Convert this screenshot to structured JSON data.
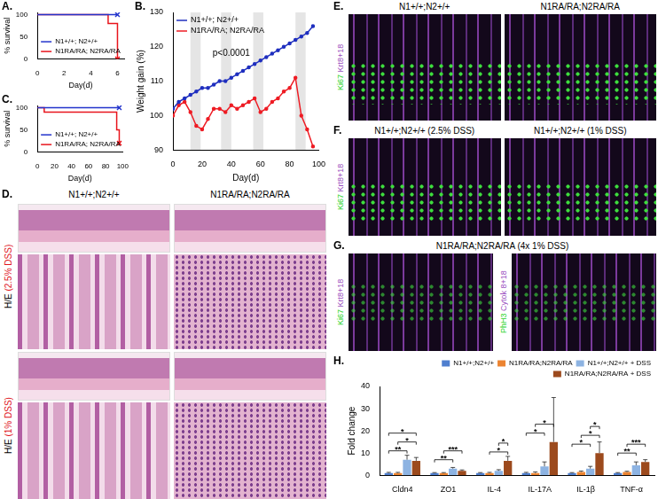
{
  "chart_data": [
    {
      "panel": "A.",
      "type": "line",
      "x_label": "Day(d)",
      "y_label": "% survival",
      "xlim": [
        0,
        6.5
      ],
      "xticks": [
        0,
        2,
        4,
        6
      ],
      "ylim": [
        0,
        105
      ],
      "yticks": [
        0,
        50,
        100
      ],
      "grid": false,
      "legend": "lower left",
      "series": [
        {
          "name": "N1+/+; N2+/+",
          "color": "#2233cc",
          "x": [
            0,
            6
          ],
          "values": [
            100,
            100
          ],
          "line_style": "step",
          "marker": "x"
        },
        {
          "name": "N1RA/RA; N2RA/RA",
          "color": "#e8141c",
          "x": [
            0,
            5.3,
            6
          ],
          "values": [
            100,
            80,
            0
          ],
          "line_style": "step",
          "marker": "x"
        }
      ]
    },
    {
      "panel": "B.",
      "type": "line",
      "x_label": "Day(d)",
      "y_label": "Weight gain (%)",
      "xlim": [
        0,
        100
      ],
      "xticks": [
        0,
        20,
        40,
        60,
        80,
        100
      ],
      "ylim": [
        90,
        130
      ],
      "yticks": [
        90,
        100,
        110,
        120,
        130
      ],
      "grid": false,
      "legend": "upper left",
      "annotation": "p<0.0001",
      "dss_periods": [
        [
          12,
          19
        ],
        [
          33,
          40
        ],
        [
          55,
          62
        ],
        [
          84,
          91
        ]
      ],
      "x": [
        0,
        4,
        8,
        12,
        16,
        20,
        24,
        28,
        32,
        36,
        40,
        44,
        48,
        52,
        56,
        60,
        64,
        68,
        72,
        76,
        80,
        84,
        88,
        92,
        96
      ],
      "series": [
        {
          "name": "N1+/+; N2+/+",
          "color": "#1f2fbf",
          "marker": "circle",
          "line_style": "solid",
          "values": [
            102,
            104,
            105,
            106,
            107,
            108,
            108,
            109,
            110,
            110,
            111,
            112,
            113,
            114,
            115,
            116,
            117,
            118,
            119,
            120,
            121,
            122,
            123,
            124,
            126
          ]
        },
        {
          "name": "N1RA/RA; N2RA/RA",
          "color": "#ee1c24",
          "marker": "circle",
          "line_style": "solid",
          "values": [
            100,
            103,
            104,
            101,
            97,
            96,
            99,
            102,
            102,
            101,
            103,
            102,
            103,
            104,
            105,
            101,
            102,
            104,
            105,
            107,
            108,
            111,
            100,
            96,
            91
          ]
        }
      ]
    },
    {
      "panel": "C.",
      "type": "line",
      "x_label": "Day(d)",
      "y_label": "% survival",
      "xlim": [
        0,
        100
      ],
      "xticks": [
        0,
        20,
        40,
        60,
        80,
        100
      ],
      "ylim": [
        0,
        105
      ],
      "yticks": [
        0,
        50,
        100
      ],
      "grid": false,
      "legend": "lower left",
      "series": [
        {
          "name": "N1+/+; N2+/+",
          "color": "#2233cc",
          "x": [
            0,
            96
          ],
          "values": [
            100,
            100
          ],
          "line_style": "step",
          "marker": "x"
        },
        {
          "name": "N1RA/RA; N2RA/RA",
          "color": "#e8141c",
          "x": [
            0,
            8,
            93,
            96
          ],
          "values": [
            100,
            90,
            50,
            20
          ],
          "line_style": "step",
          "marker": "x"
        }
      ]
    },
    {
      "panel": "H.",
      "type": "bar",
      "y_label": "Fold change",
      "categories": [
        "Cldn4",
        "ZO1",
        "IL-4",
        "IL-17A",
        "IL-1β",
        "TNF-α"
      ],
      "ylim": [
        0,
        40
      ],
      "yticks": [
        0,
        10,
        20,
        30,
        40
      ],
      "grid": false,
      "legend": "upper right",
      "series": [
        {
          "name": "N1+/+;N2+/+",
          "color": "#4f7fcf",
          "values": [
            1,
            1,
            1,
            1,
            1,
            1
          ],
          "errors": [
            0.3,
            0.2,
            0.2,
            0.3,
            0.2,
            0.2
          ]
        },
        {
          "name": "N1RA/RA;N2RA/RA",
          "color": "#ec8431",
          "values": [
            1,
            1,
            1,
            1,
            1.5,
            1.5
          ],
          "errors": [
            0.3,
            0.2,
            0.3,
            0.5,
            0.4,
            0.3
          ]
        },
        {
          "name": "N1+/+;N2+/+ + DSS",
          "color": "#8db3e2",
          "values": [
            7,
            3,
            2,
            4,
            3,
            4.5
          ],
          "errors": [
            2,
            0.5,
            0.5,
            2,
            1,
            1.5
          ]
        },
        {
          "name": "N1RA/RA;N2RA/RA + DSS",
          "color": "#9c4a1d",
          "values": [
            6.5,
            2,
            6.5,
            15,
            10,
            6
          ],
          "errors": [
            1.5,
            0.4,
            2,
            20,
            5,
            1
          ]
        }
      ],
      "significance": [
        {
          "category": "Cldn4",
          "between": [
            0,
            2
          ],
          "label": "**"
        },
        {
          "category": "Cldn4",
          "between": [
            1,
            3
          ],
          "label": "*"
        },
        {
          "category": "Cldn4",
          "between": [
            0,
            3
          ],
          "label": "*"
        },
        {
          "category": "ZO1",
          "between": [
            0,
            2
          ],
          "label": "**"
        },
        {
          "category": "ZO1",
          "between": [
            1,
            3
          ],
          "label": "***"
        },
        {
          "category": "IL-4",
          "between": [
            1,
            3
          ],
          "label": "*"
        },
        {
          "category": "IL-4",
          "between": [
            2,
            3
          ],
          "label": "*"
        },
        {
          "category": "IL-17A",
          "between": [
            0,
            2
          ],
          "label": "*"
        },
        {
          "category": "IL-17A",
          "between": [
            1,
            3
          ],
          "label": "*"
        },
        {
          "category": "IL-1β",
          "between": [
            0,
            2
          ],
          "label": "*"
        },
        {
          "category": "IL-1β",
          "between": [
            1,
            3
          ],
          "label": "*"
        },
        {
          "category": "IL-1β",
          "between": [
            2,
            3
          ],
          "label": "*"
        },
        {
          "category": "TNF-α",
          "between": [
            0,
            2
          ],
          "label": "**"
        },
        {
          "category": "TNF-α",
          "between": [
            1,
            3
          ],
          "label": "***"
        }
      ]
    }
  ],
  "image_panels": [
    {
      "panel": "D.",
      "column_titles": [
        "N1+/+;N2+/+",
        "N1RA/RA;N2RA/RA"
      ],
      "row_labels": [
        {
          "stain": "H/E",
          "condition": "(2.5% DSS)"
        },
        {
          "stain": "H/E",
          "condition": "(1% DSS)"
        }
      ]
    },
    {
      "panel": "E.",
      "column_titles": [
        "N1+/+;N2+/+",
        "N1RA/RA;N2RA/RA"
      ],
      "stain_labels": [
        [
          "Ki67",
          "Krt8+18"
        ]
      ]
    },
    {
      "panel": "F.",
      "column_titles": [
        "N1+/+;N2+/+ (2.5% DSS)",
        "N1+/+;N2+/+ (1% DSS)"
      ],
      "stain_labels": [
        [
          "Ki67",
          "Krt8+18"
        ]
      ]
    },
    {
      "panel": "G.",
      "title": "N1RA/RA;N2RA/RA (4x 1% DSS)",
      "stain_labels": [
        [
          "Ki67",
          "Krt8+18"
        ],
        [
          "PhH3",
          "Cytok 8+18"
        ]
      ]
    }
  ]
}
